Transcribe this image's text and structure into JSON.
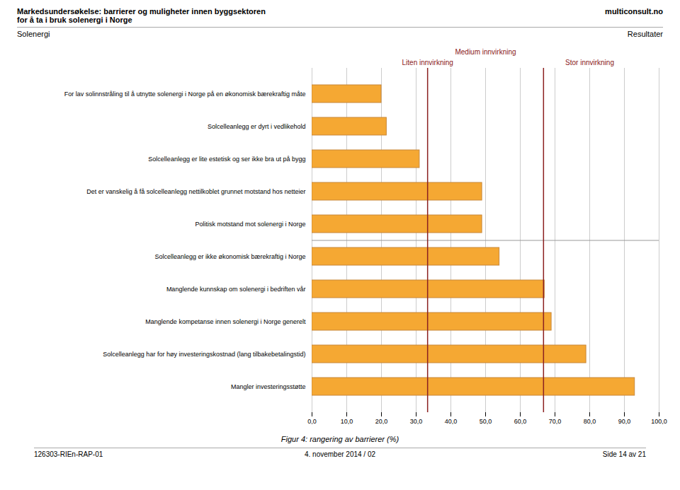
{
  "chart_data": {
    "type": "bar",
    "orientation": "horizontal",
    "title": [
      "Markedsundersøkelse: barrierer og muligheter innen byggsektoren",
      "for å ta i bruk solenergi i Norge"
    ],
    "title_right": "multiconsult.no",
    "subtitle": "Solenergi",
    "subtitle_right": "Resultater",
    "caption": "Figur 4: rangering av barrierer (%)",
    "footer": [
      "126303-RIEn-RAP-01",
      "4. november 2014 / 02",
      "Side 14 av 21"
    ],
    "categories": [
      "For lav solinnstråling til å utnytte solenergi i Norge på en økonomisk bærekraftig måte",
      "Solcelleanlegg er dyrt i vedlikehold",
      "Solcelleanlegg er lite estetisk og ser ikke bra ut på bygg",
      "Det er vanskelig å få solcelleanlegg nettilkoblet grunnet motstand hos netteier",
      "Politisk motstand mot solenergi i Norge",
      "Solcelleanlegg er ikke økonomisk bærekraftig i Norge",
      "Manglende kunnskap om solenergi i bedriften vår",
      "Manglende kompetanse innen solenergi i Norge generelt",
      "Solcelleanlegg har for høy investeringskostnad (lang tilbakebetalingstid)",
      "Mangler investeringsstøtte"
    ],
    "values": [
      20.0,
      21.5,
      31.0,
      49.0,
      49.0,
      54.0,
      67.0,
      69.0,
      79.0,
      93.0
    ],
    "color": "#F5A833",
    "edge_color": "#C8873A",
    "reference_lines": [
      {
        "x": 33.3,
        "color": "#8B2020"
      },
      {
        "x": 66.7,
        "color": "#8B2020"
      }
    ],
    "annotations": [
      {
        "text": "Liten innvirkning",
        "x": 33.3,
        "color": "#8B2020"
      },
      {
        "text": "Medium innvirkning",
        "x": 50.0,
        "color": "#8B2020"
      },
      {
        "text": "Stor innvirkning",
        "x": 80.0,
        "color": "#8B2020"
      }
    ],
    "xlim": [
      0,
      100
    ],
    "xticks": [
      {
        "value": 0.0,
        "label": "0,0"
      },
      {
        "value": 10.0,
        "label": "10,0"
      },
      {
        "value": 20.0,
        "label": "20,0"
      },
      {
        "value": 30.0,
        "label": "30,0"
      },
      {
        "value": 40.0,
        "label": "40,0"
      },
      {
        "value": 50.0,
        "label": "50,0"
      },
      {
        "value": 60.0,
        "label": "60,0"
      },
      {
        "value": 70.0,
        "label": "70,0"
      },
      {
        "value": 80.0,
        "label": "80,0"
      },
      {
        "value": 90.0,
        "label": "90,0"
      },
      {
        "value": 100.0,
        "label": "100,0"
      }
    ],
    "grid": true
  }
}
